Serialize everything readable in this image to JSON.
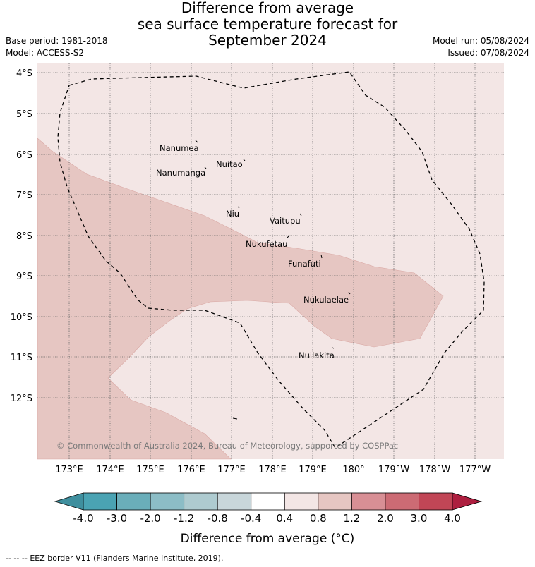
{
  "title_lines": [
    "Difference from average",
    "sea surface temperature forecast for",
    "September 2024"
  ],
  "base_period": "Base period: 1981-2018",
  "model": "Model: ACCESS-S2",
  "model_run": "Model run: 05/08/2024",
  "issued": "Issued: 07/08/2024",
  "lat_labels": [
    "4°S",
    "5°S",
    "6°S",
    "7°S",
    "8°S",
    "9°S",
    "10°S",
    "11°S",
    "12°S"
  ],
  "lon_labels": [
    "173°E",
    "174°E",
    "175°E",
    "176°E",
    "177°E",
    "178°E",
    "179°E",
    "180°",
    "179°W",
    "178°W",
    "177°W"
  ],
  "islands": [
    "Nanumea",
    "Nuitao",
    "Nanumanga",
    "Niu",
    "Vaitupu",
    "Nukufetau",
    "Funafuti",
    "Nukulaelae",
    "Nuilakita"
  ],
  "copyright": "© Commonwealth of Australia 2024, Bureau of Meteorology, supported by COSPPac",
  "colorbar": {
    "ticks": [
      "-4.0",
      "-3.0",
      "-2.0",
      "-1.2",
      "-0.8",
      "-0.4",
      "0.4",
      "0.8",
      "1.2",
      "2.0",
      "3.0",
      "4.0"
    ],
    "colors": [
      "#3f8f9e",
      "#4aa3b3",
      "#6aaeba",
      "#8cbdc6",
      "#aecbd0",
      "#c8d6da",
      "#ffffff",
      "#f3e6e5",
      "#e6c6c2",
      "#d88f95",
      "#cc6b74",
      "#c14656",
      "#ad1f3f"
    ],
    "label": "Difference from average (°C)"
  },
  "legend_text": "EEZ border V11 (Flanders Marine Institute, 2019).",
  "legend_symbol": "-- -- --"
}
